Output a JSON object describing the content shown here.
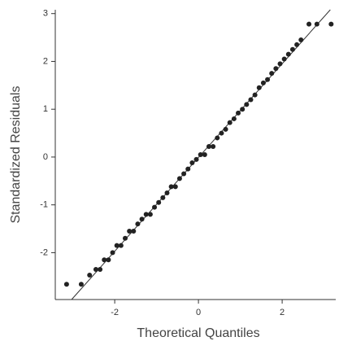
{
  "chart_data": {
    "type": "scatter",
    "x_label": "Theoretical Quantiles",
    "y_label": "Standardized Residuals",
    "xlim": [
      -3.42,
      3.28
    ],
    "ylim": [
      -2.98,
      3.08
    ],
    "xticks": [
      -2,
      0,
      2
    ],
    "yticks": [
      -2,
      -1,
      0,
      1,
      2,
      3
    ],
    "color": "#222222",
    "line_color": "#333333",
    "reference_line": {
      "x": [
        -3.03,
        3.15
      ],
      "y": [
        -2.98,
        3.08
      ]
    },
    "x": [
      -3.15,
      -2.8,
      -2.6,
      -2.45,
      -2.35,
      -2.25,
      -2.15,
      -2.05,
      -1.95,
      -1.85,
      -1.75,
      -1.65,
      -1.55,
      -1.45,
      -1.35,
      -1.25,
      -1.15,
      -1.05,
      -0.95,
      -0.85,
      -0.75,
      -0.65,
      -0.55,
      -0.45,
      -0.35,
      -0.25,
      -0.15,
      -0.05,
      0.05,
      0.15,
      0.25,
      0.35,
      0.45,
      0.55,
      0.65,
      0.75,
      0.85,
      0.95,
      1.05,
      1.15,
      1.25,
      1.35,
      1.45,
      1.55,
      1.65,
      1.75,
      1.85,
      1.95,
      2.05,
      2.15,
      2.25,
      2.35,
      2.45,
      2.64,
      2.83,
      3.17
    ],
    "y": [
      -2.66,
      -2.66,
      -2.47,
      -2.35,
      -2.35,
      -2.15,
      -2.15,
      -2.0,
      -1.85,
      -1.85,
      -1.7,
      -1.55,
      -1.55,
      -1.4,
      -1.3,
      -1.2,
      -1.2,
      -1.05,
      -0.95,
      -0.85,
      -0.75,
      -0.62,
      -0.62,
      -0.45,
      -0.35,
      -0.25,
      -0.12,
      -0.05,
      0.05,
      0.05,
      0.22,
      0.22,
      0.4,
      0.5,
      0.58,
      0.72,
      0.8,
      0.92,
      1.0,
      1.1,
      1.2,
      1.3,
      1.45,
      1.55,
      1.62,
      1.75,
      1.85,
      1.95,
      2.05,
      2.15,
      2.25,
      2.35,
      2.45,
      2.78,
      2.78,
      2.78
    ]
  }
}
